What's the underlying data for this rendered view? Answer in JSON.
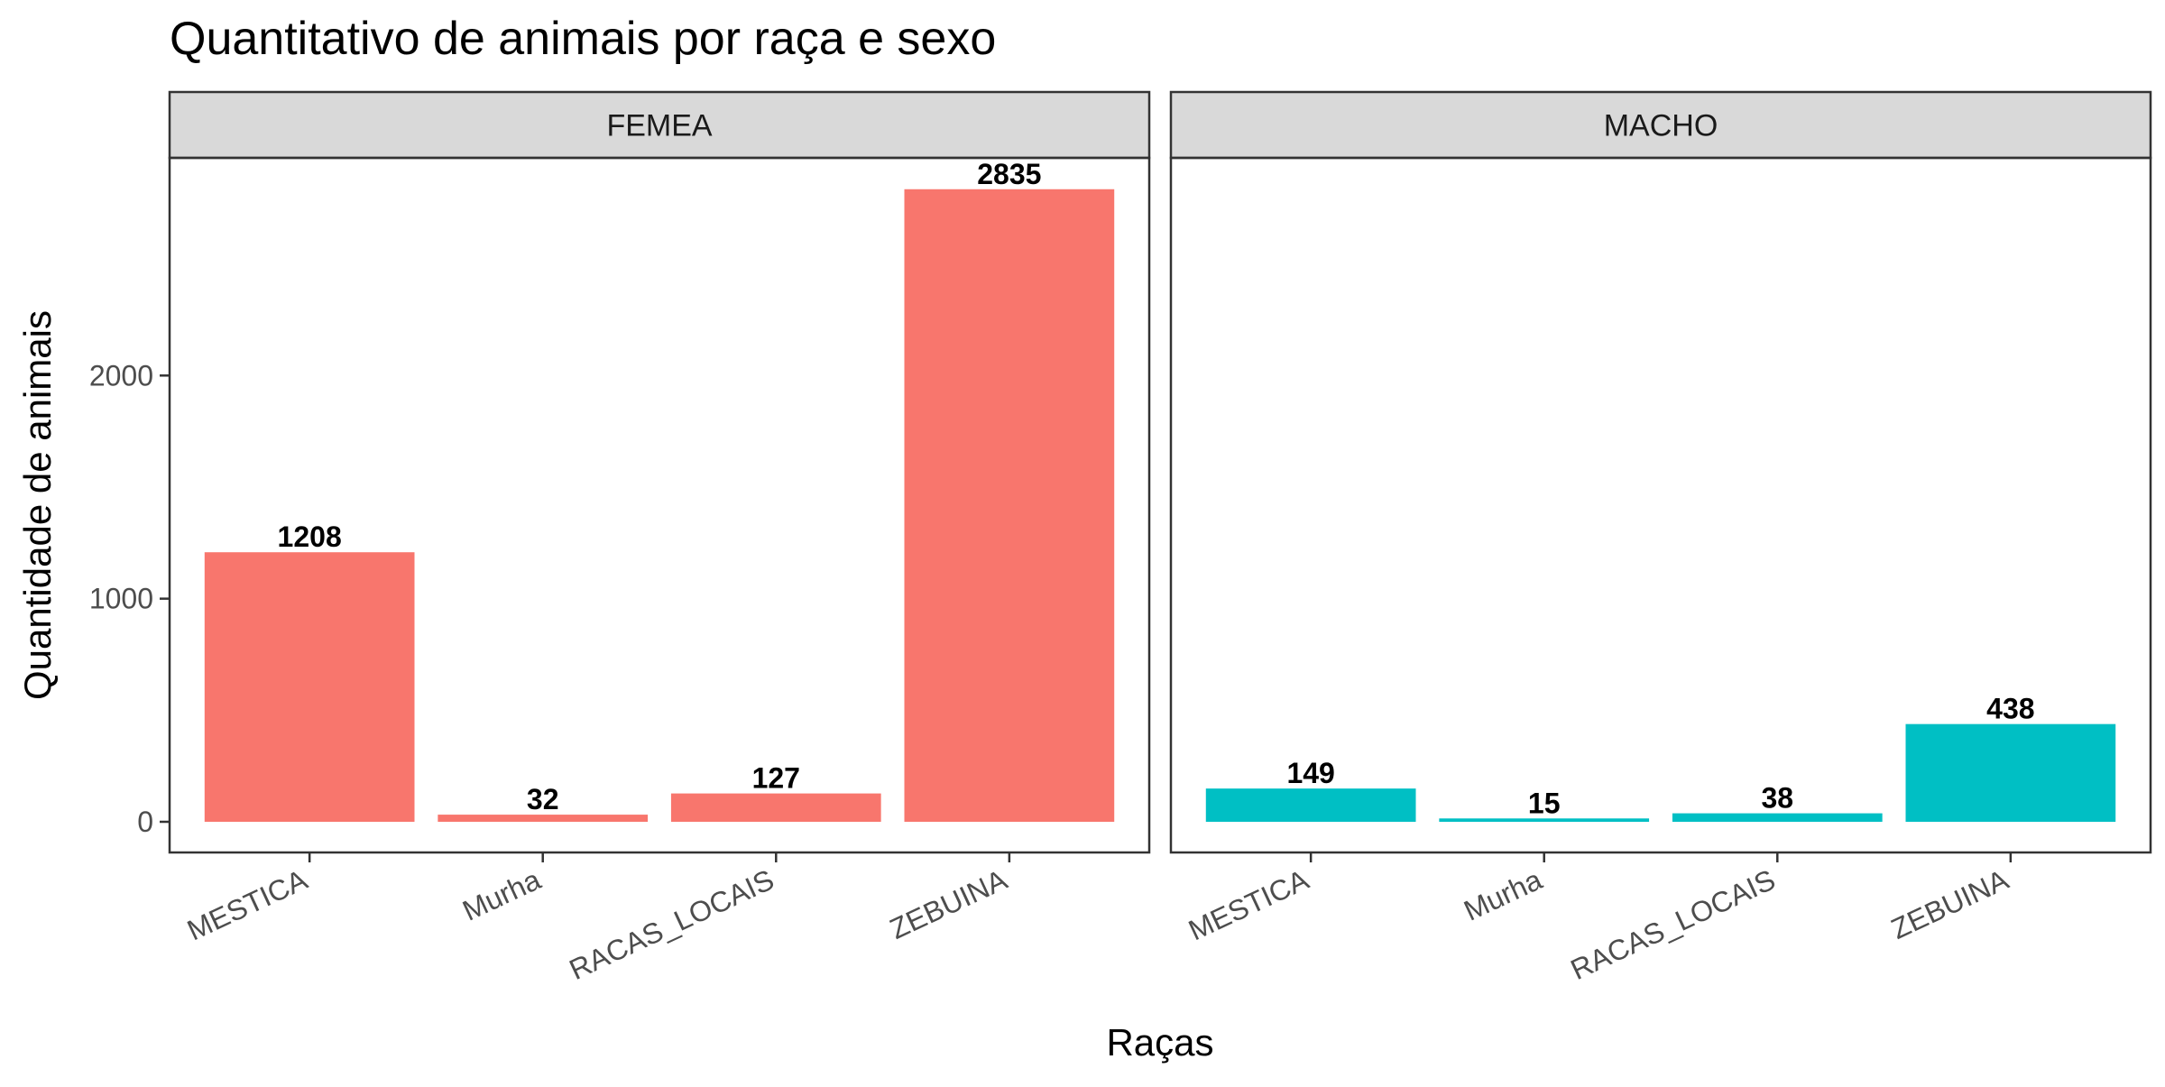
{
  "chart_data": {
    "type": "bar",
    "title": "Quantitativo de animais por raça e sexo",
    "xlabel": "Raças",
    "ylabel": "Quantidade de animais",
    "categories": [
      "MESTICA",
      "Murha",
      "RACAS_LOCAIS",
      "ZEBUINA"
    ],
    "ylim": [
      0,
      3000
    ],
    "yticks": [
      0,
      1000,
      2000
    ],
    "ytick_labels": [
      "0",
      "1000",
      "2000"
    ],
    "grid": false,
    "legend": "none",
    "facets": [
      {
        "label": "FEMEA",
        "color": "#F8766D",
        "values": [
          1208,
          32,
          127,
          2835
        ]
      },
      {
        "label": "MACHO",
        "color": "#00BFC4",
        "values": [
          149,
          15,
          38,
          438
        ]
      }
    ]
  }
}
